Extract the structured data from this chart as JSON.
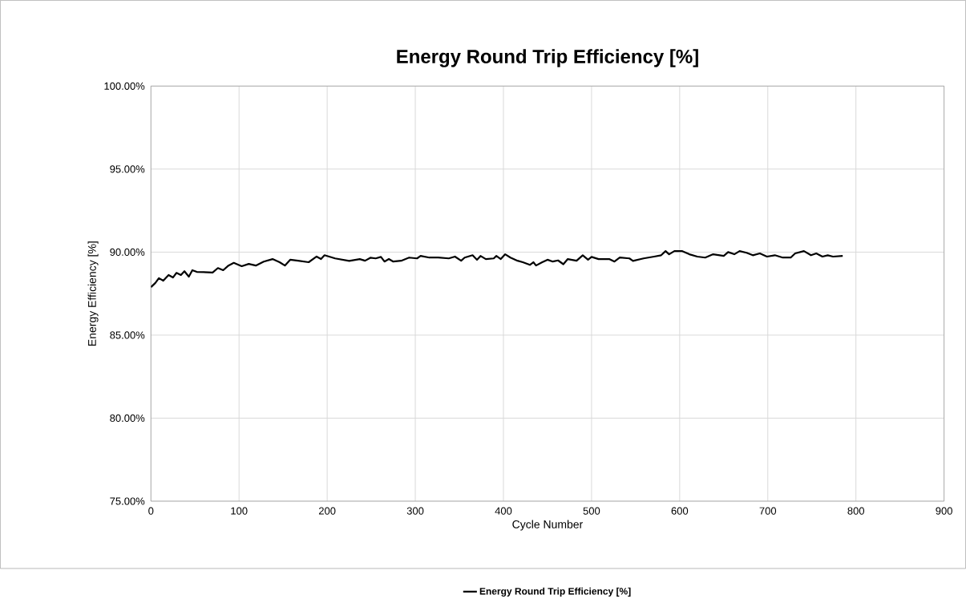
{
  "chart_data": {
    "type": "line",
    "title": "Energy Round Trip Efficiency [%]",
    "xlabel": "Cycle Number",
    "ylabel": "Energy Efficiency [%]",
    "xlim": [
      0,
      900
    ],
    "xticks": [
      0,
      100,
      200,
      300,
      400,
      500,
      600,
      700,
      800,
      900
    ],
    "ylim": [
      75,
      100
    ],
    "yticks": [
      {
        "value": 75,
        "label": "75.00%"
      },
      {
        "value": 80,
        "label": "80.00%"
      },
      {
        "value": 85,
        "label": "85.00%"
      },
      {
        "value": 90,
        "label": "90.00%"
      },
      {
        "value": 95,
        "label": "95.00%"
      },
      {
        "value": 100,
        "label": "100.00%"
      }
    ],
    "grid": true,
    "legend": "bottom",
    "marker": "none",
    "line_style": "solid",
    "series": [
      {
        "name": "Energy Round Trip Efficiency [%]",
        "color": "#000000",
        "x": [
          0,
          5,
          9,
          14,
          20,
          25,
          29,
          34,
          38,
          43,
          47,
          52,
          70,
          76,
          82,
          88,
          94,
          103,
          111,
          119,
          128,
          138,
          146,
          152,
          158,
          167,
          179,
          188,
          193,
          197,
          209,
          225,
          237,
          243,
          249,
          255,
          261,
          265,
          270,
          275,
          284,
          293,
          302,
          306,
          316,
          326,
          338,
          345,
          352,
          356,
          365,
          370,
          374,
          380,
          389,
          392,
          397,
          402,
          408,
          416,
          422,
          430,
          434,
          437,
          444,
          450,
          456,
          462,
          468,
          473,
          483,
          490,
          496,
          500,
          508,
          520,
          526,
          532,
          543,
          547,
          559,
          571,
          579,
          584,
          588,
          594,
          603,
          611,
          620,
          629,
          638,
          650,
          655,
          662,
          668,
          676,
          683,
          691,
          699,
          708,
          717,
          726,
          731,
          741,
          749,
          755,
          762,
          768,
          774,
          785
        ],
        "values": [
          87.89,
          88.14,
          88.43,
          88.28,
          88.62,
          88.47,
          88.75,
          88.62,
          88.85,
          88.52,
          88.91,
          88.81,
          88.77,
          89.04,
          88.91,
          89.19,
          89.35,
          89.15,
          89.29,
          89.19,
          89.43,
          89.58,
          89.39,
          89.19,
          89.54,
          89.48,
          89.39,
          89.73,
          89.58,
          89.81,
          89.62,
          89.47,
          89.58,
          89.48,
          89.66,
          89.62,
          89.71,
          89.43,
          89.58,
          89.43,
          89.48,
          89.67,
          89.62,
          89.77,
          89.67,
          89.67,
          89.62,
          89.73,
          89.48,
          89.67,
          89.81,
          89.54,
          89.77,
          89.58,
          89.62,
          89.77,
          89.58,
          89.87,
          89.67,
          89.48,
          89.39,
          89.23,
          89.39,
          89.19,
          89.39,
          89.54,
          89.43,
          89.5,
          89.27,
          89.58,
          89.48,
          89.81,
          89.54,
          89.71,
          89.58,
          89.58,
          89.43,
          89.67,
          89.62,
          89.47,
          89.62,
          89.73,
          89.81,
          90.06,
          89.87,
          90.06,
          90.06,
          89.87,
          89.73,
          89.67,
          89.87,
          89.77,
          90.0,
          89.87,
          90.06,
          89.96,
          89.81,
          89.92,
          89.73,
          89.81,
          89.67,
          89.67,
          89.92,
          90.06,
          89.81,
          89.92,
          89.73,
          89.81,
          89.73,
          89.77
        ]
      }
    ]
  }
}
